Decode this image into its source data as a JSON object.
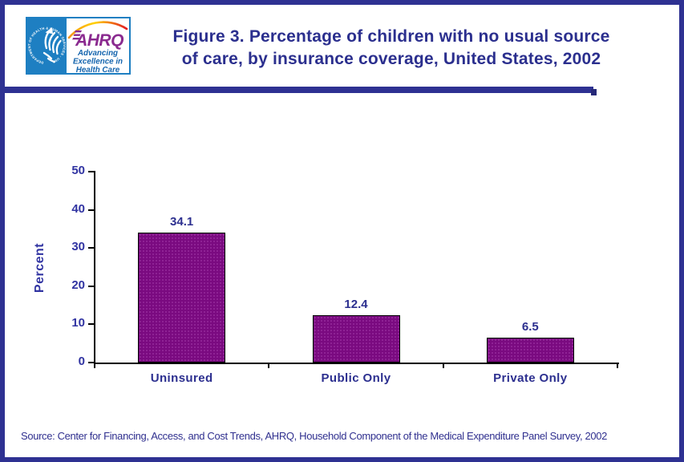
{
  "page": {
    "border_color": "#2E3192",
    "background_color": "#FFFFFF"
  },
  "header": {
    "logo": {
      "hhs_circle_text": "DEPARTMENT OF HEALTH & HUMAN SERVICES · USA",
      "hhs_blue": "#1E7FC2",
      "ahrq_acronym": "AHRQ",
      "ahrq_purple": "#8A2A8F",
      "tagline": [
        "Advancing",
        "Excellence in",
        "Health Care"
      ],
      "tagline_blue": "#1565AE"
    },
    "title_line1": "Figure 3. Percentage of children with no usual source",
    "title_line2": "of care, by insurance coverage, United States, 2002",
    "title_color": "#2B2F8E"
  },
  "chart_data": {
    "type": "bar",
    "title": "Figure 3. Percentage of children with no usual source of care, by insurance coverage, United States, 2002",
    "categories": [
      "Uninsured",
      "Public Only",
      "Private Only"
    ],
    "values": [
      34.1,
      12.4,
      6.5
    ],
    "value_labels": [
      "34.1",
      "12.4",
      "6.5"
    ],
    "xlabel": "",
    "ylabel": "Percent",
    "ylim": [
      0,
      50
    ],
    "y_ticks": [
      0,
      10,
      20,
      30,
      40,
      50
    ],
    "grid": false,
    "legend": false,
    "bar_color": "#7A0A80",
    "bar_border_color": "#000000",
    "axis_color": "#000000",
    "tick_label_color": "#3134A2",
    "label_color": "#2C2F8F"
  },
  "footer": {
    "source": "Source: Center for Financing, Access, and Cost Trends, AHRQ, Household Component of the Medical Expenditure Panel Survey, 2002"
  }
}
